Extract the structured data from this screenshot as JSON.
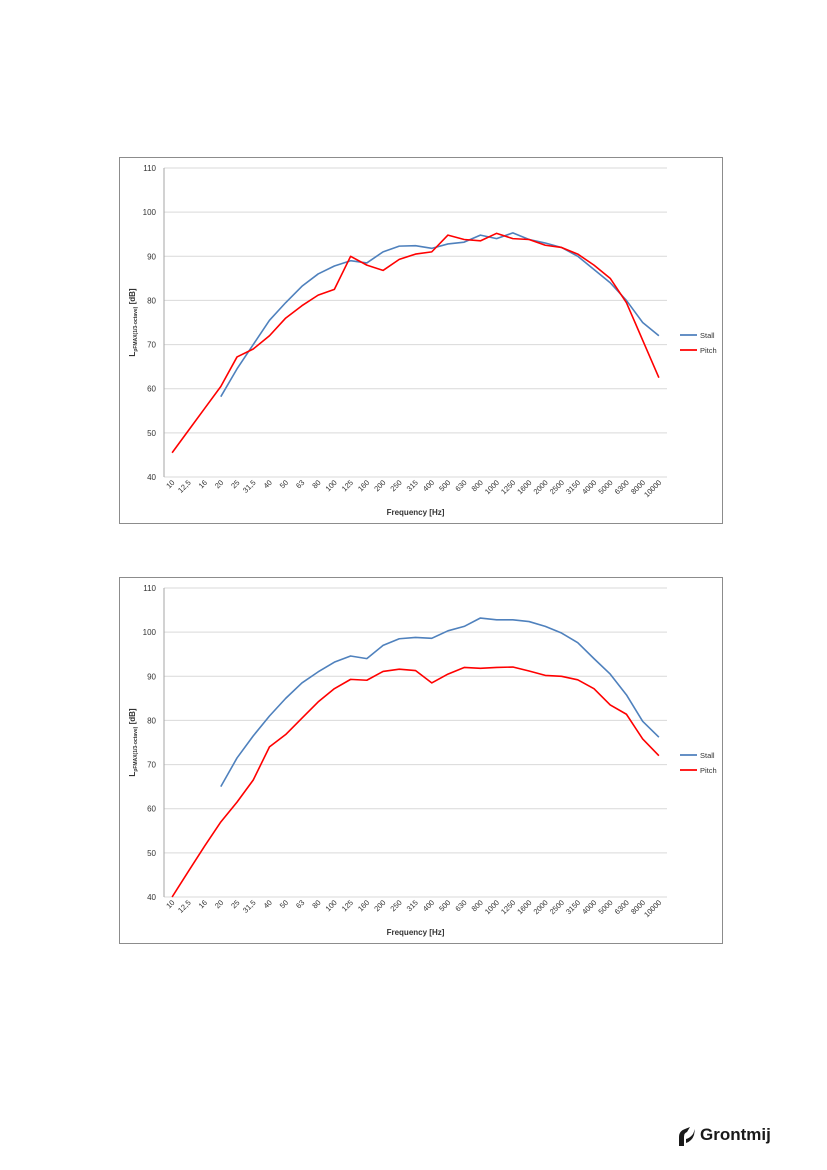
{
  "chart_data": [
    {
      "type": "line",
      "title": "",
      "xlabel": "Frequency [Hz]",
      "ylabel": "L_pFMAX(1/3-octave) [dB]",
      "ylabel_main": "L",
      "ylabel_sub": "pFMAX(1/3-octave)",
      "ylabel_unit": "[dB]",
      "ylim": [
        40,
        110
      ],
      "yticks": [
        "40",
        "50",
        "60",
        "70",
        "80",
        "90",
        "100",
        "110"
      ],
      "grid": "horizontal",
      "legend_position": "right",
      "categories": [
        "10",
        "12,5",
        "16",
        "20",
        "25",
        "31,5",
        "40",
        "50",
        "63",
        "80",
        "100",
        "125",
        "160",
        "200",
        "250",
        "315",
        "400",
        "500",
        "630",
        "800",
        "1000",
        "1250",
        "1600",
        "2000",
        "2500",
        "3150",
        "4000",
        "5000",
        "6300",
        "8000",
        "10000"
      ],
      "series": [
        {
          "name": "Stall",
          "color": "#4f81bd",
          "values": [
            null,
            null,
            null,
            58.2,
            64.5,
            70.0,
            75.5,
            79.5,
            83.2,
            86.0,
            87.8,
            89.0,
            88.5,
            91.0,
            92.3,
            92.4,
            91.8,
            92.8,
            93.2,
            94.8,
            94.0,
            95.3,
            93.8,
            93.0,
            92.0,
            90.0,
            87.0,
            84.0,
            80.0,
            75.0,
            72.0
          ]
        },
        {
          "name": "Pitch",
          "color": "#ff0000",
          "values": [
            45.5,
            50.5,
            55.5,
            60.5,
            67.2,
            69.0,
            72.0,
            76.0,
            78.8,
            81.2,
            82.5,
            90.0,
            88.0,
            86.8,
            89.3,
            90.5,
            91.0,
            94.8,
            93.8,
            93.5,
            95.2,
            94.0,
            93.8,
            92.5,
            92.0,
            90.5,
            88.0,
            85.0,
            79.5,
            71.0,
            62.5
          ]
        }
      ]
    },
    {
      "type": "line",
      "title": "",
      "xlabel": "Frequency [Hz]",
      "ylabel": "L_pFMAX(1/3-octave) [dB]",
      "ylabel_main": "L",
      "ylabel_sub": "pFMAX(1/3-octave)",
      "ylabel_unit": "[dB]",
      "ylim": [
        40,
        110
      ],
      "yticks": [
        "40",
        "50",
        "60",
        "70",
        "80",
        "90",
        "100",
        "110"
      ],
      "grid": "horizontal",
      "legend_position": "right",
      "categories": [
        "10",
        "12,5",
        "16",
        "20",
        "25",
        "31,5",
        "40",
        "50",
        "63",
        "80",
        "100",
        "125",
        "160",
        "200",
        "250",
        "315",
        "400",
        "500",
        "630",
        "800",
        "1000",
        "1250",
        "1600",
        "2000",
        "2500",
        "3150",
        "4000",
        "5000",
        "6300",
        "8000",
        "10000"
      ],
      "series": [
        {
          "name": "Stall",
          "color": "#4f81bd",
          "values": [
            null,
            null,
            null,
            65.0,
            71.5,
            76.5,
            81.0,
            85.0,
            88.5,
            91.0,
            93.2,
            94.6,
            94.0,
            97.0,
            98.5,
            98.8,
            98.6,
            100.3,
            101.3,
            103.2,
            102.8,
            102.8,
            102.4,
            101.3,
            99.8,
            97.6,
            94.0,
            90.5,
            85.8,
            79.8,
            76.2
          ]
        },
        {
          "name": "Pitch",
          "color": "#ff0000",
          "values": [
            40.0,
            45.8,
            51.5,
            57.0,
            61.5,
            66.5,
            74.0,
            76.8,
            80.5,
            84.2,
            87.2,
            89.3,
            89.1,
            91.1,
            91.6,
            91.3,
            88.5,
            90.5,
            92.0,
            91.8,
            92.0,
            92.1,
            91.2,
            90.2,
            90.0,
            89.2,
            87.2,
            83.5,
            81.4,
            75.8,
            72.0
          ]
        }
      ]
    }
  ],
  "logo": {
    "text": "Grontmij",
    "icon": "grontmij-logo-icon"
  }
}
